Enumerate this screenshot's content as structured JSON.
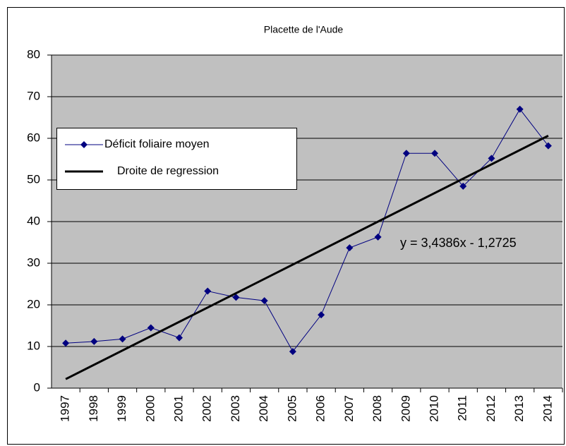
{
  "chart_data": {
    "type": "line",
    "title": "Placette de l'Aude",
    "categories": [
      "1997",
      "1998",
      "1999",
      "2000",
      "2001",
      "2002",
      "2003",
      "2004",
      "2005",
      "2006",
      "2007",
      "2008",
      "2009",
      "2010",
      "2011",
      "2012",
      "2013",
      "2014"
    ],
    "series": [
      {
        "name": "Déficit foliaire moyen",
        "color": "#000080",
        "marker": "diamond",
        "values": [
          10.8,
          11.2,
          11.8,
          14.5,
          12.1,
          23.3,
          21.8,
          21.0,
          8.8,
          17.6,
          33.7,
          36.3,
          56.4,
          56.4,
          48.5,
          55.2,
          67.0,
          58.2
        ]
      },
      {
        "name": "Droite de regression",
        "color": "#000000",
        "values": [
          2.17,
          5.6,
          9.04,
          12.48,
          15.92,
          19.36,
          22.8,
          26.24,
          29.68,
          33.11,
          36.55,
          39.99,
          43.43,
          46.87,
          50.31,
          53.75,
          57.18,
          60.62
        ]
      }
    ],
    "annotation": "y = 3,4386x - 1,2725",
    "ylim": [
      0,
      80
    ],
    "yticks": [
      0,
      10,
      20,
      30,
      40,
      50,
      60,
      70,
      80
    ],
    "grid": true
  }
}
